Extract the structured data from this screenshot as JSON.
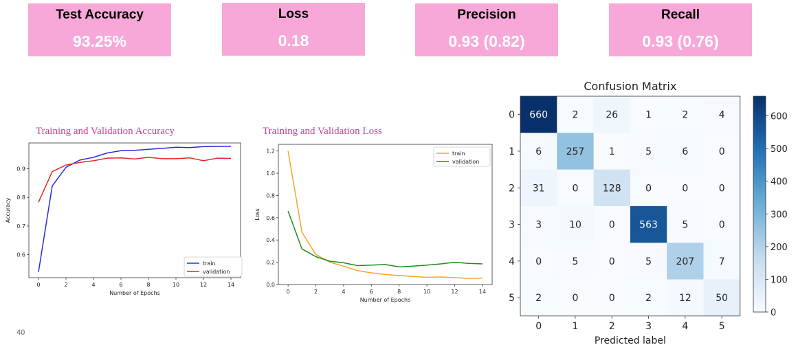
{
  "metrics": [
    {
      "label": "Test Accuracy",
      "value": "93.25%"
    },
    {
      "label": "Loss",
      "value": "0.18"
    },
    {
      "label": "Precision",
      "value": "0.93 (0.82)"
    },
    {
      "label": "Recall",
      "value": "0.93 (0.76)"
    }
  ],
  "colors": {
    "card_bg": "#f8a8d8",
    "card_value": "#ffffff",
    "title_pink": "#e0389a"
  },
  "slide_number": "40",
  "chart_data": [
    {
      "type": "line",
      "title": "Training and Validation Accuracy",
      "xlabel": "Number of Epochs",
      "ylabel": "Accuracy",
      "xlim": [
        -0.7,
        14.7
      ],
      "ylim": [
        0.52,
        0.99
      ],
      "xticks": [
        0,
        2,
        4,
        6,
        8,
        10,
        12,
        14
      ],
      "yticks": [
        0.6,
        0.7,
        0.8,
        0.9
      ],
      "legend": "bottom-right",
      "x": [
        0,
        1,
        2,
        3,
        4,
        5,
        6,
        7,
        8,
        9,
        10,
        11,
        12,
        13,
        14
      ],
      "series": [
        {
          "name": "train",
          "color": "#2b2bdd",
          "values": [
            0.54,
            0.84,
            0.905,
            0.93,
            0.94,
            0.955,
            0.963,
            0.964,
            0.968,
            0.971,
            0.975,
            0.974,
            0.977,
            0.978,
            0.978
          ]
        },
        {
          "name": "validation",
          "color": "#e02828",
          "values": [
            0.783,
            0.89,
            0.913,
            0.922,
            0.928,
            0.937,
            0.938,
            0.934,
            0.94,
            0.935,
            0.935,
            0.938,
            0.928,
            0.937,
            0.936
          ]
        }
      ]
    },
    {
      "type": "line",
      "title": "Training and Validation Loss",
      "xlabel": "Number of Epochs",
      "ylabel": "Loss",
      "xlim": [
        -0.7,
        14.7
      ],
      "ylim": [
        0,
        1.26
      ],
      "xticks": [
        0,
        2,
        4,
        6,
        8,
        10,
        12,
        14
      ],
      "yticks": [
        0.0,
        0.2,
        0.4,
        0.6,
        0.8,
        1.0,
        1.2
      ],
      "legend": "top-right",
      "x": [
        0,
        1,
        2,
        3,
        4,
        5,
        6,
        7,
        8,
        9,
        10,
        11,
        12,
        13,
        14
      ],
      "series": [
        {
          "name": "train",
          "color": "#f5a623",
          "values": [
            1.2,
            0.47,
            0.27,
            0.2,
            0.165,
            0.125,
            0.105,
            0.09,
            0.08,
            0.072,
            0.065,
            0.068,
            0.062,
            0.055,
            0.058
          ]
        },
        {
          "name": "validation",
          "color": "#1e8c1e",
          "values": [
            0.66,
            0.32,
            0.25,
            0.21,
            0.195,
            0.17,
            0.175,
            0.18,
            0.158,
            0.165,
            0.175,
            0.185,
            0.2,
            0.19,
            0.185
          ]
        }
      ]
    },
    {
      "type": "heatmap",
      "title": "Confusion Matrix",
      "xlabel": "Predicted label",
      "ylabel": "",
      "row_labels": [
        "0",
        "1",
        "2",
        "3",
        "4",
        "5"
      ],
      "col_labels": [
        "0",
        "1",
        "2",
        "3",
        "4",
        "5"
      ],
      "matrix": [
        [
          660,
          2,
          26,
          1,
          2,
          4
        ],
        [
          6,
          257,
          1,
          5,
          6,
          0
        ],
        [
          31,
          0,
          128,
          0,
          0,
          0
        ],
        [
          3,
          10,
          0,
          563,
          5,
          0
        ],
        [
          0,
          5,
          0,
          5,
          207,
          7
        ],
        [
          2,
          0,
          0,
          2,
          12,
          50
        ]
      ],
      "vmin": 0,
      "vmax": 660,
      "colorbar_ticks": [
        0,
        100,
        200,
        300,
        400,
        500,
        600
      ],
      "colormap": "Blues"
    }
  ]
}
